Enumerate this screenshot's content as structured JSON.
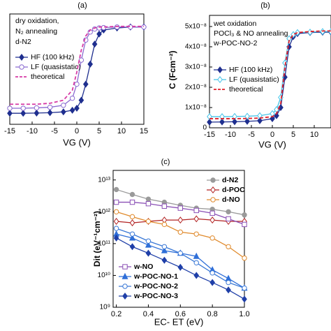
{
  "chart_data": [
    {
      "type": "line",
      "title": "(a)",
      "xlabel": "VG (V)",
      "annotations": [
        "dry oxidation,",
        "N₂ annealing",
        "d-N2"
      ],
      "x": [
        -15,
        -12,
        -9,
        -6,
        -3,
        -1,
        0,
        1,
        2,
        3,
        4,
        5,
        6,
        9,
        12,
        15
      ],
      "xlim": [
        -15,
        15
      ],
      "xticks": [
        -15,
        -10,
        -5,
        0,
        5,
        10,
        15
      ],
      "ylim": [
        0,
        5.5e-08
      ],
      "series": [
        {
          "name": "HF (100 kHz)",
          "color": "#1f2f8f",
          "marker": "diamond",
          "filled": true,
          "dash": false,
          "values": [
            5.5e-09,
            5.5e-09,
            5.6e-09,
            5.8e-09,
            6.2e-09,
            7e-09,
            8e-09,
            1.2e-08,
            2e-08,
            3e-08,
            4e-08,
            4.5e-08,
            4.7e-08,
            4.8e-08,
            4.85e-08,
            4.85e-08
          ]
        },
        {
          "name": "LF (quasistatic)",
          "color": "#8a6ad0",
          "marker": "circle",
          "filled": false,
          "dash": false,
          "values": [
            8e-09,
            8e-09,
            8.2e-09,
            8.5e-09,
            9.5e-09,
            1.3e-08,
            2e-08,
            3.2e-08,
            4.2e-08,
            4.6e-08,
            4.75e-08,
            4.8e-08,
            4.82e-08,
            4.85e-08,
            4.85e-08,
            4.85e-08
          ]
        },
        {
          "name": "theoretical",
          "color": "#d63aa5",
          "marker": "none",
          "filled": false,
          "dash": true,
          "values": [
            1e-08,
            1e-08,
            1e-08,
            1.05e-08,
            1.2e-08,
            1.7e-08,
            2.6e-08,
            3.7e-08,
            4.4e-08,
            4.7e-08,
            4.8e-08,
            4.85e-08,
            4.85e-08,
            4.88e-08,
            4.88e-08,
            4.88e-08
          ]
        }
      ]
    },
    {
      "type": "line",
      "title": "(b)",
      "xlabel": "VG (V)",
      "ylabel": "C (Fcm⁻²)",
      "annotations": [
        "wet oxidation",
        "POCl₃ & NO annealing",
        "w-POC-NO-2"
      ],
      "x": [
        -15,
        -12,
        -9,
        -6,
        -3,
        0,
        1,
        2,
        3,
        4,
        5,
        6,
        9,
        12,
        14
      ],
      "xlim": [
        -15,
        14
      ],
      "xticks": [
        -15,
        -10,
        -5,
        0,
        5,
        10
      ],
      "ylim": [
        0,
        5.55e-08
      ],
      "yticks": [
        0,
        {
          "value": 1e-08,
          "label": "1x10⁻⁸"
        },
        {
          "value": 2e-08,
          "label": "2x10⁻⁸"
        },
        {
          "value": 3e-08,
          "label": "3x10⁻⁸"
        },
        {
          "value": 4e-08,
          "label": "4x10⁻⁸"
        },
        {
          "value": 5e-08,
          "label": "5x10⁻⁸"
        }
      ],
      "series": [
        {
          "name": "HF (100 kHz)",
          "color": "#1f2f8f",
          "marker": "diamond",
          "filled": true,
          "dash": false,
          "values": [
            2.8e-09,
            2.9e-09,
            3e-09,
            3.2e-09,
            3.5e-09,
            4.5e-09,
            6e-09,
            1e-08,
            2.5e-08,
            4e-08,
            4.5e-08,
            4.65e-08,
            4.7e-08,
            4.72e-08,
            4.72e-08
          ]
        },
        {
          "name": "LF (quasistatic)",
          "color": "#45c3e8",
          "marker": "diamond",
          "filled": false,
          "dash": false,
          "values": [
            5.5e-09,
            5.5e-09,
            5.6e-09,
            5.7e-09,
            6e-09,
            7e-09,
            9e-09,
            1.5e-08,
            3.2e-08,
            4.4e-08,
            4.6e-08,
            4.7e-08,
            4.72e-08,
            4.75e-08,
            4.75e-08
          ]
        },
        {
          "name": "theoretical",
          "color": "#e0202a",
          "marker": "none",
          "filled": false,
          "dash": true,
          "values": [
            4.5e-09,
            4.5e-09,
            4.5e-09,
            4.6e-09,
            4.8e-09,
            5.5e-09,
            7e-09,
            1.2e-08,
            3e-08,
            4.3e-08,
            4.6e-08,
            4.7e-08,
            4.75e-08,
            4.78e-08,
            4.78e-08
          ]
        }
      ]
    },
    {
      "type": "line",
      "title": "(c)",
      "xlabel": "EC- ET (eV)",
      "ylabel": "Dit (eV⁻¹cm⁻²)",
      "log_y": true,
      "x": [
        0.2,
        0.3,
        0.4,
        0.5,
        0.6,
        0.7,
        0.8,
        0.9,
        1.0
      ],
      "xlim": [
        0.18,
        1.0
      ],
      "xticks": [
        0.2,
        0.4,
        0.6,
        0.8,
        {
          "value": 1.0,
          "label": "1.0"
        }
      ],
      "ylim": [
        1000000000.0,
        20000000000000.0
      ],
      "yticks": [
        {
          "value": 1000000000.0,
          "label": "10⁹"
        },
        {
          "value": 10000000000.0,
          "label": "10¹⁰"
        },
        {
          "value": 100000000000.0,
          "label": "10¹¹"
        },
        {
          "value": 1000000000000.0,
          "label": "10¹²"
        },
        {
          "value": 10000000000000.0,
          "label": "10¹³"
        }
      ],
      "series": [
        {
          "name": "d-N2",
          "color": "#9a9a9a",
          "marker": "circle",
          "filled": true,
          "dash": false,
          "values": [
            5000000000000.0,
            3500000000000.0,
            2500000000000.0,
            2000000000000.0,
            1600000000000.0,
            1300000000000.0,
            1200000000000.0,
            1000000000000.0,
            800000000000.0
          ]
        },
        {
          "name": "d-POC",
          "color": "#b22222",
          "marker": "diamond",
          "filled": false,
          "dash": false,
          "values": [
            500000000000.0,
            450000000000.0,
            500000000000.0,
            550000000000.0,
            550000000000.0,
            600000000000.0,
            550000000000.0,
            500000000000.0,
            500000000000.0
          ]
        },
        {
          "name": "d-NO",
          "color": "#e08a2c",
          "marker": "circle",
          "filled": false,
          "dash": false,
          "values": [
            1000000000000.0,
            700000000000.0,
            500000000000.0,
            400000000000.0,
            230000000000.0,
            200000000000.0,
            150000000000.0,
            80000000000.0,
            35000000000.0
          ]
        },
        {
          "name": "w-NO",
          "color": "#8a4fb5",
          "marker": "square",
          "filled": false,
          "dash": false,
          "values": [
            2000000000000.0,
            2000000000000.0,
            1800000000000.0,
            1500000000000.0,
            1300000000000.0,
            1100000000000.0,
            900000000000.0,
            600000000000.0,
            400000000000.0
          ]
        },
        {
          "name": "w-POC-NO-1",
          "color": "#2f6fd8",
          "marker": "triangle",
          "filled": true,
          "dash": false,
          "values": [
            200000000000.0,
            150000000000.0,
            90000000000.0,
            60000000000.0,
            50000000000.0,
            40000000000.0,
            15000000000.0,
            8000000000.0,
            4000000000.0
          ]
        },
        {
          "name": "w-POC-NO-2",
          "color": "#3a78d6",
          "marker": "circle",
          "filled": false,
          "dash": false,
          "values": [
            300000000000.0,
            200000000000.0,
            120000000000.0,
            80000000000.0,
            50000000000.0,
            25000000000.0,
            12000000000.0,
            6000000000.0,
            4000000000.0
          ]
        },
        {
          "name": "w-POC-NO-3",
          "color": "#1f3fa8",
          "marker": "diamond",
          "filled": true,
          "dash": false,
          "values": [
            150000000000.0,
            80000000000.0,
            50000000000.0,
            30000000000.0,
            18000000000.0,
            10000000000.0,
            6000000000.0,
            3500000000.0,
            1800000000.0
          ]
        }
      ]
    }
  ]
}
